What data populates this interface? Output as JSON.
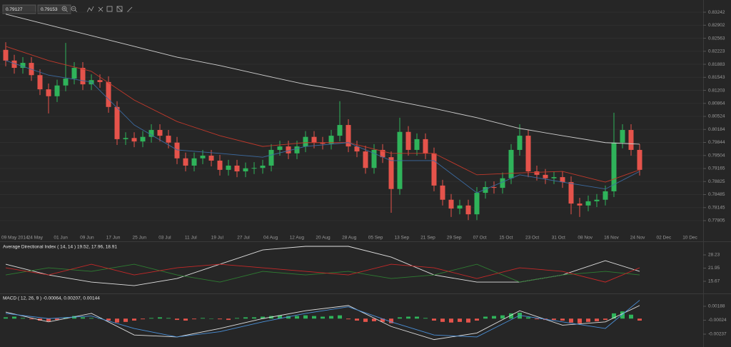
{
  "toolbar": {
    "bid": "0.79127",
    "ask": "0.79153"
  },
  "chart_data": [
    {
      "type": "candlestick",
      "date_labels": [
        "09 May 2014",
        "24 May",
        "01 Jun",
        "09 Jun",
        "17 Jun",
        "25 Jun",
        "03 Jul",
        "11 Jul",
        "19 Jul",
        "27 Jul",
        "04 Aug",
        "12 Aug",
        "20 Aug",
        "28 Aug",
        "05 Sep",
        "13 Sep",
        "21 Sep",
        "29 Sep",
        "07 Oct",
        "15 Oct",
        "23 Oct",
        "31 Oct",
        "08 Nov",
        "16 Nov",
        "24 Nov",
        "02 Dec",
        "10 Dec"
      ],
      "open": [
        0.8226,
        0.8198,
        0.8179,
        0.8192,
        0.816,
        0.8123,
        0.8105,
        0.8133,
        0.8151,
        0.8179,
        0.8136,
        0.8147,
        0.8142,
        0.8077,
        0.7993,
        0.7996,
        0.7987,
        0.7999,
        0.8017,
        0.8002,
        0.7984,
        0.7943,
        0.7924,
        0.7943,
        0.795,
        0.7937,
        0.7913,
        0.7924,
        0.7909,
        0.7917,
        0.7918,
        0.7924,
        0.7965,
        0.7974,
        0.7956,
        0.7974,
        0.7999,
        0.7984,
        0.7981,
        0.8002,
        0.803,
        0.7974,
        0.7961,
        0.7918,
        0.7965,
        0.7946,
        0.7863,
        0.8012,
        0.7965,
        0.7993,
        0.7956,
        0.7872,
        0.7835,
        0.7812,
        0.782,
        0.7797,
        0.7853,
        0.7868,
        0.7866,
        0.7891,
        0.7965,
        0.8002,
        0.7909,
        0.79,
        0.7891,
        0.7894,
        0.7881,
        0.7825,
        0.782,
        0.7831,
        0.7835,
        0.7857,
        0.7984,
        0.8017,
        0.7965
      ],
      "high": [
        0.8246,
        0.8213,
        0.8207,
        0.8207,
        0.8175,
        0.8138,
        0.8148,
        0.8244,
        0.8194,
        0.8194,
        0.8162,
        0.8162,
        0.8157,
        0.8092,
        0.8011,
        0.8011,
        0.8014,
        0.8032,
        0.8032,
        0.8017,
        0.7999,
        0.7958,
        0.7958,
        0.7965,
        0.7965,
        0.7952,
        0.7939,
        0.7939,
        0.7932,
        0.7933,
        0.7939,
        0.798,
        0.7989,
        0.7989,
        0.7989,
        0.8014,
        0.8014,
        0.7999,
        0.8017,
        0.8092,
        0.8045,
        0.7989,
        0.7976,
        0.798,
        0.798,
        0.7961,
        0.8049,
        0.8027,
        0.8008,
        0.8008,
        0.7971,
        0.7887,
        0.785,
        0.7835,
        0.7835,
        0.7868,
        0.7883,
        0.7883,
        0.7906,
        0.798,
        0.8032,
        0.8017,
        0.7924,
        0.7915,
        0.7909,
        0.7909,
        0.7896,
        0.784,
        0.7846,
        0.785,
        0.7872,
        0.8062,
        0.8032,
        0.8032,
        0.798
      ],
      "low": [
        0.8183,
        0.8164,
        0.8164,
        0.8145,
        0.8108,
        0.806,
        0.809,
        0.8118,
        0.8136,
        0.8121,
        0.8121,
        0.8127,
        0.8062,
        0.7978,
        0.7978,
        0.7972,
        0.7972,
        0.7984,
        0.7987,
        0.7969,
        0.7928,
        0.7909,
        0.7909,
        0.7928,
        0.7922,
        0.7898,
        0.7898,
        0.7894,
        0.7894,
        0.7902,
        0.7903,
        0.7909,
        0.795,
        0.7941,
        0.7941,
        0.7959,
        0.7969,
        0.7966,
        0.7966,
        0.7987,
        0.7959,
        0.7946,
        0.7903,
        0.7903,
        0.7931,
        0.7801,
        0.7848,
        0.795,
        0.795,
        0.7941,
        0.7857,
        0.782,
        0.779,
        0.7797,
        0.7782,
        0.7782,
        0.7838,
        0.7851,
        0.7851,
        0.7876,
        0.795,
        0.7894,
        0.7885,
        0.7876,
        0.7876,
        0.7866,
        0.7797,
        0.779,
        0.7805,
        0.7816,
        0.782,
        0.7842,
        0.7969,
        0.795,
        0.7898
      ],
      "close": [
        0.8198,
        0.8179,
        0.8192,
        0.816,
        0.8123,
        0.8105,
        0.8133,
        0.8151,
        0.8179,
        0.8136,
        0.8147,
        0.8142,
        0.8077,
        0.7993,
        0.7996,
        0.7987,
        0.7999,
        0.8017,
        0.8002,
        0.7984,
        0.7943,
        0.7924,
        0.7943,
        0.795,
        0.7937,
        0.7913,
        0.7924,
        0.7909,
        0.7917,
        0.7918,
        0.7924,
        0.7965,
        0.7974,
        0.7956,
        0.7974,
        0.7999,
        0.7984,
        0.7981,
        0.8002,
        0.803,
        0.7974,
        0.7961,
        0.7918,
        0.7965,
        0.7946,
        0.7863,
        0.8012,
        0.7965,
        0.7993,
        0.7956,
        0.7872,
        0.7835,
        0.7812,
        0.782,
        0.7797,
        0.7853,
        0.7868,
        0.7866,
        0.7891,
        0.7965,
        0.8002,
        0.7909,
        0.79,
        0.7891,
        0.7894,
        0.7881,
        0.7825,
        0.782,
        0.7831,
        0.7835,
        0.7857,
        0.7984,
        0.8017,
        0.7965,
        0.7913
      ],
      "up_color": "#2fb35a",
      "down_color": "#e5534b",
      "overlay": {
        "x": [
          0,
          5,
          10,
          15,
          20,
          25,
          30,
          35,
          40,
          45,
          50,
          55,
          60,
          65,
          70,
          74
        ],
        "series": [
          {
            "color": "#cfcfcf",
            "values": [
              0.8319,
              0.8291,
              0.8263,
              0.8235,
              0.8207,
              0.8185,
              0.816,
              0.8136,
              0.8118,
              0.8095,
              0.8073,
              0.8049,
              0.8021,
              0.8002,
              0.7984,
              0.798
            ]
          },
          {
            "color": "#c0392b",
            "values": [
              0.8235,
              0.8198,
              0.817,
              0.8095,
              0.8039,
              0.8002,
              0.7974,
              0.7984,
              0.7984,
              0.7956,
              0.7956,
              0.79,
              0.7905,
              0.7909,
              0.7881,
              0.7913
            ]
          },
          {
            "color": "#3b6aa0",
            "values": [
              0.8198,
              0.816,
              0.8142,
              0.803,
              0.7965,
              0.7956,
              0.7946,
              0.7974,
              0.7984,
              0.7937,
              0.7937,
              0.7853,
              0.79,
              0.7881,
              0.7863,
              0.7909
            ]
          }
        ]
      },
      "ylim": [
        0.7747,
        0.8356
      ],
      "yticks": [
        0.83242,
        0.82902,
        0.82563,
        0.82223,
        0.81883,
        0.81543,
        0.81203,
        0.80864,
        0.80524,
        0.80184,
        0.79844,
        0.79504,
        0.79165,
        0.78825,
        0.78485,
        0.78145,
        0.77805
      ],
      "grid": true
    },
    {
      "type": "line",
      "title": "Average Directional Index ( 14, 14 ) 19.52, 17.96, 18.91",
      "x": [
        0,
        5,
        10,
        15,
        20,
        25,
        30,
        35,
        40,
        45,
        50,
        55,
        60,
        65,
        70,
        74
      ],
      "series": [
        {
          "color": "#e0e0e0",
          "values": [
            23.8,
            18.7,
            15.3,
            13.6,
            17.0,
            23.8,
            30.6,
            32.3,
            32.3,
            27.2,
            18.7,
            15.3,
            15.3,
            18.7,
            25.5,
            20.4
          ]
        },
        {
          "color": "#2e7d32",
          "values": [
            18.7,
            22.1,
            20.4,
            23.8,
            18.7,
            15.3,
            20.4,
            18.7,
            20.4,
            17.0,
            18.7,
            23.8,
            15.3,
            18.7,
            20.4,
            18.7
          ]
        },
        {
          "color": "#c62828",
          "values": [
            22.1,
            18.7,
            23.8,
            18.7,
            22.1,
            23.8,
            22.1,
            20.4,
            18.7,
            23.8,
            22.1,
            17.0,
            22.1,
            20.4,
            15.3,
            22.1
          ]
        }
      ],
      "ylim": [
        10.24,
        34.0
      ],
      "yticks": [
        28.23,
        21.95,
        15.67
      ]
    },
    {
      "type": "macd",
      "title": "MACD ( 12, 26, 9 ) -0.00064, 0.00207, 0.00144",
      "histogram": [
        0.0002,
        0.0003,
        0.0001,
        -0.0001,
        -0.0003,
        -0.0004,
        -0.0002,
        0.0002,
        0.0004,
        0.0002,
        0.0001,
        0.0001,
        -0.0003,
        -0.0006,
        -0.0005,
        -0.0003,
        -0.0001,
        0.0001,
        0.0002,
        0.0001,
        -0.0002,
        -0.0003,
        -0.0001,
        0.0001,
        0,
        -0.0001,
        -0.0002,
        0.0001,
        0.0002,
        0.0002,
        0.0003,
        0.0004,
        0.0005,
        0.0004,
        0.0004,
        0.0005,
        0.0004,
        0.0003,
        0.0004,
        0.0005,
        -0.0001,
        -0.0003,
        -0.0005,
        -0.0004,
        -0.0005,
        -0.0007,
        0.0002,
        0.0003,
        0.0003,
        0.0001,
        -0.0003,
        -0.0005,
        -0.0006,
        -0.0005,
        -0.0006,
        -0.0003,
        0.0003,
        0.0004,
        0.0005,
        0.0008,
        0.0009,
        0.0002,
        -0.0001,
        -0.0002,
        -0.0002,
        -0.0003,
        -0.0006,
        -0.0007,
        -0.0005,
        -0.0004,
        -0.0002,
        0.0008,
        0.0011,
        0.0006,
        -0.0003
      ],
      "up_color": "#2fb35a",
      "down_color": "#e5534b",
      "x": [
        0,
        5,
        10,
        15,
        20,
        25,
        30,
        35,
        40,
        45,
        50,
        55,
        60,
        65,
        70,
        74
      ],
      "series": [
        {
          "color": "#e0e0e0",
          "values": [
            0.001,
            -0.0005,
            0.0008,
            -0.0025,
            -0.0028,
            -0.0015,
            0.0,
            0.0012,
            0.002,
            -0.0012,
            -0.0032,
            -0.0022,
            0.0012,
            -0.001,
            -0.0005,
            0.002
          ]
        },
        {
          "color": "#4a90d9",
          "values": [
            0.0008,
            0.0,
            0.0004,
            -0.0015,
            -0.0028,
            -0.002,
            -0.0005,
            0.0008,
            0.0018,
            -0.0005,
            -0.0025,
            -0.0028,
            0.0005,
            -0.0005,
            -0.0015,
            0.0028
          ]
        }
      ],
      "ylim": [
        -0.00433,
        0.00373
      ],
      "yticks": [
        0.00188,
        -0.00024,
        -0.00237
      ]
    }
  ]
}
